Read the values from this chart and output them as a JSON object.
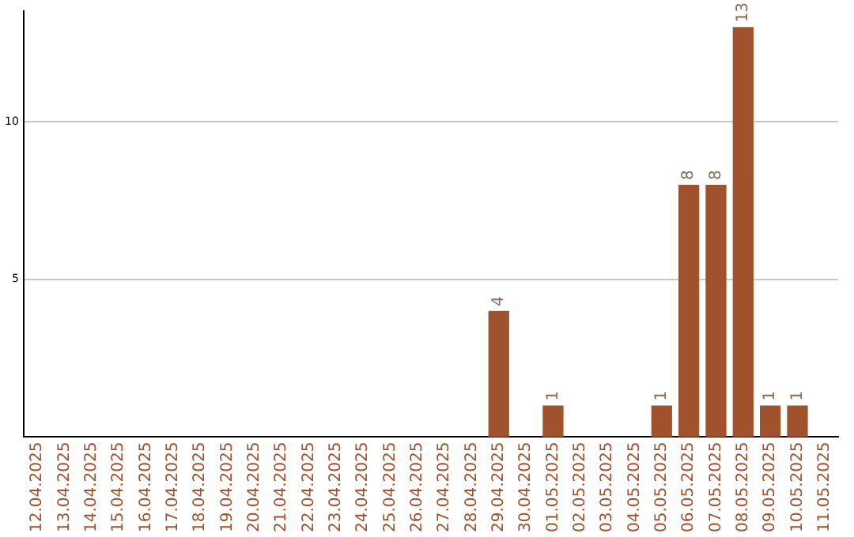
{
  "chart_data": {
    "type": "bar",
    "categories": [
      "12.04.2025",
      "13.04.2025",
      "14.04.2025",
      "15.04.2025",
      "16.04.2025",
      "17.04.2025",
      "18.04.2025",
      "19.04.2025",
      "20.04.2025",
      "21.04.2025",
      "22.04.2025",
      "23.04.2025",
      "24.04.2025",
      "25.04.2025",
      "26.04.2025",
      "27.04.2025",
      "28.04.2025",
      "29.04.2025",
      "30.04.2025",
      "01.05.2025",
      "02.05.2025",
      "03.05.2025",
      "04.05.2025",
      "05.05.2025",
      "06.05.2025",
      "07.05.2025",
      "08.05.2025",
      "09.05.2025",
      "10.05.2025",
      "11.05.2025"
    ],
    "values": [
      0,
      0,
      0,
      0,
      0,
      0,
      0,
      0,
      0,
      0,
      0,
      0,
      0,
      0,
      0,
      0,
      0,
      4,
      0,
      1,
      0,
      0,
      0,
      1,
      8,
      8,
      13,
      1,
      1,
      0
    ],
    "value_labels": [
      null,
      null,
      null,
      null,
      null,
      null,
      null,
      null,
      null,
      null,
      null,
      null,
      null,
      null,
      null,
      null,
      null,
      "4",
      null,
      "1",
      null,
      null,
      null,
      "1",
      "8",
      "8",
      "13",
      "1",
      "1",
      null
    ],
    "color": "#a0522d",
    "ylim": [
      0,
      13.5
    ],
    "yticks": [
      5,
      10
    ],
    "grid": "y",
    "legend": false
  }
}
